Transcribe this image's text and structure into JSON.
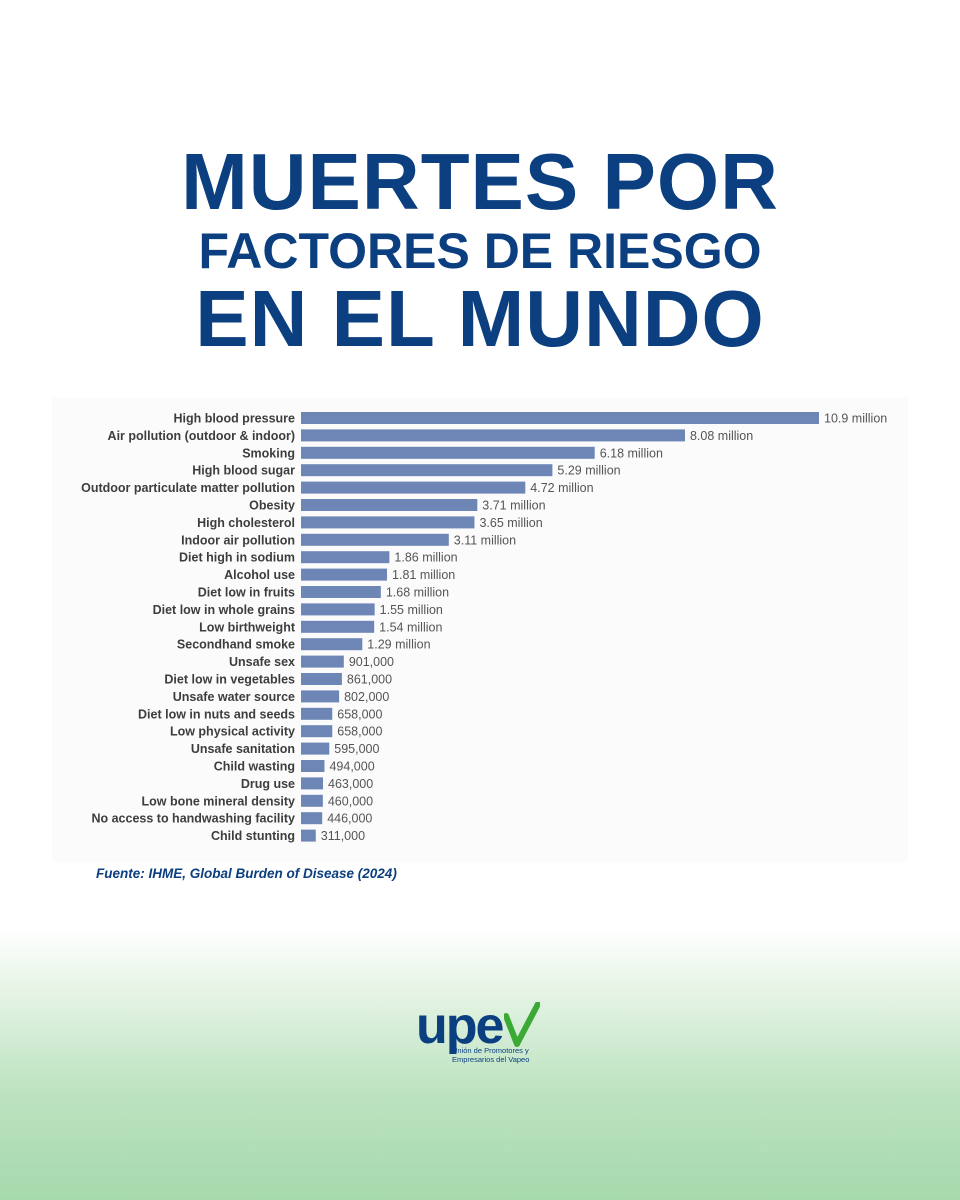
{
  "title": {
    "line1": "MUERTES POR",
    "line2": "FACTORES DE RIESGO",
    "line3": "EN EL MUNDO"
  },
  "chart_data": {
    "type": "bar",
    "orientation": "horizontal",
    "categories": [
      "High blood pressure",
      "Air pollution (outdoor & indoor)",
      "Smoking",
      "High blood sugar",
      "Outdoor particulate matter pollution",
      "Obesity",
      "High cholesterol",
      "Indoor air pollution",
      "Diet high in sodium",
      "Alcohol use",
      "Diet low in fruits",
      "Diet low in whole grains",
      "Low birthweight",
      "Secondhand smoke",
      "Unsafe sex",
      "Diet low in vegetables",
      "Unsafe water source",
      "Diet low in nuts and seeds",
      "Low physical activity",
      "Unsafe sanitation",
      "Child wasting",
      "Drug use",
      "Low bone mineral density",
      "No access to handwashing facility",
      "Child stunting"
    ],
    "values": [
      10900000,
      8080000,
      6180000,
      5290000,
      4720000,
      3710000,
      3650000,
      3110000,
      1860000,
      1810000,
      1680000,
      1550000,
      1540000,
      1290000,
      901000,
      861000,
      802000,
      658000,
      658000,
      595000,
      494000,
      463000,
      460000,
      446000,
      311000
    ],
    "value_labels": [
      "10.9 million",
      "8.08 million",
      "6.18 million",
      "5.29 million",
      "4.72 million",
      "3.71 million",
      "3.65 million",
      "3.11 million",
      "1.86 million",
      "1.81 million",
      "1.68 million",
      "1.55 million",
      "1.54 million",
      "1.29 million",
      "901,000",
      "861,000",
      "802,000",
      "658,000",
      "658,000",
      "595,000",
      "494,000",
      "463,000",
      "460,000",
      "446,000",
      "311,000"
    ],
    "bar_color": "#6e86b6",
    "xlim": [
      0,
      10900000
    ]
  },
  "source": "Fuente: IHME, Global Burden of Disease (2024)",
  "logo": {
    "word": "upe",
    "tagline_line1": "Unión de Promotores y",
    "tagline_line2": "Empresarios del Vapeo",
    "primary_color": "#0b3f7f",
    "check_color": "#3aaa35"
  }
}
